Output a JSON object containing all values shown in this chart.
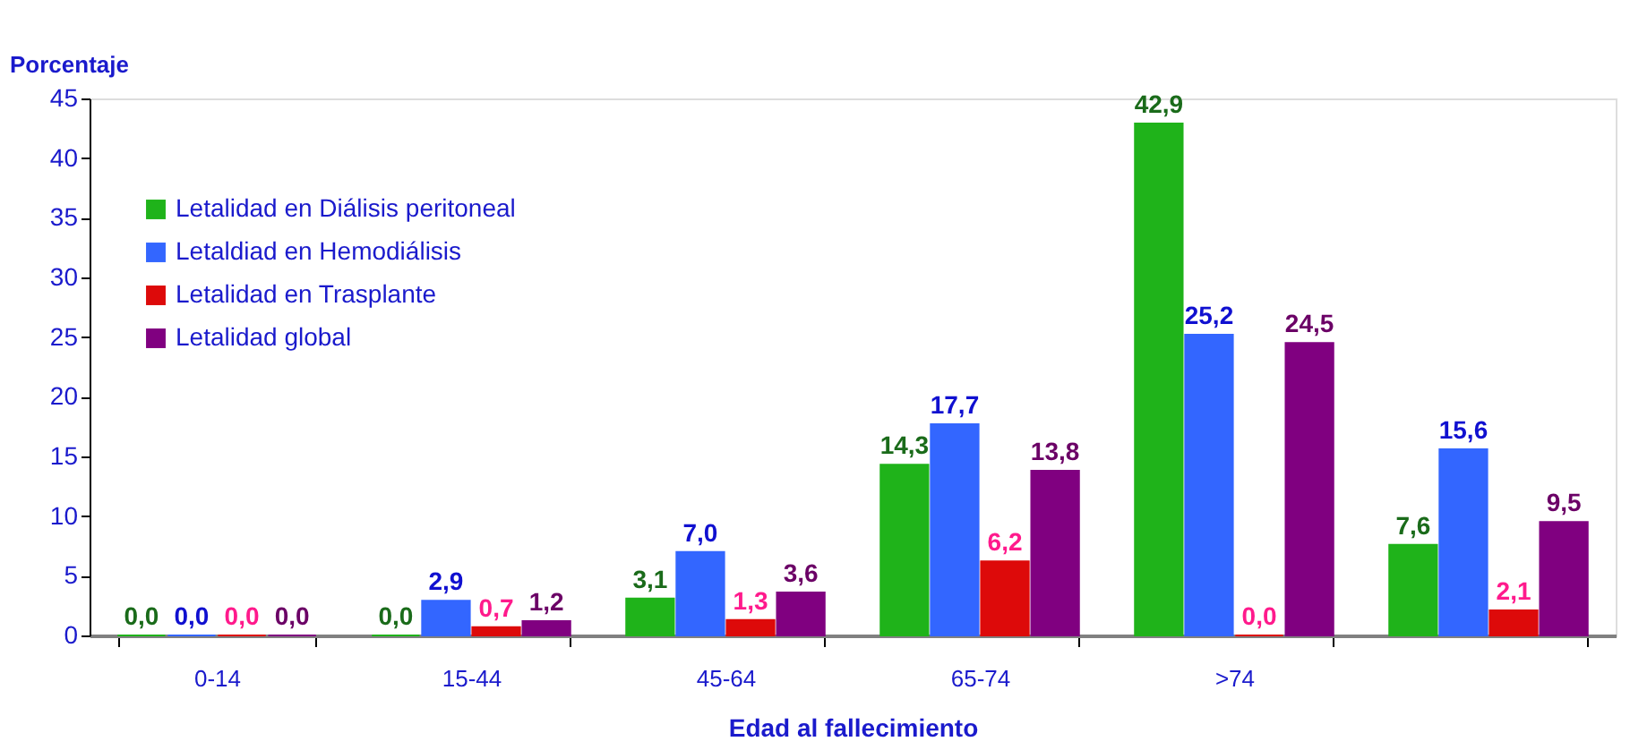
{
  "chart_data": {
    "type": "bar",
    "xlabel": "Edad al fallecimiento",
    "ylabel": "Porcentaje",
    "categories": [
      "0-14",
      "15-44",
      "45-64",
      "65-74",
      ">74",
      null
    ],
    "series": [
      {
        "name": "Letalidad en Diálisis peritoneal",
        "color": "#1fb31a",
        "values": [
          0.0,
          0.0,
          3.1,
          14.3,
          42.9,
          7.6
        ],
        "value_labels": [
          "0,0",
          "0,0",
          "3,1",
          "14,3",
          "42,9",
          "7,6"
        ]
      },
      {
        "name": "Letaldiad en Hemodiálisis",
        "color": "#3366ff",
        "values": [
          0.0,
          2.9,
          7.0,
          17.7,
          25.2,
          15.6
        ],
        "value_labels": [
          "0,0",
          "2,9",
          "7,0",
          "17,7",
          "25,2",
          "15,6"
        ]
      },
      {
        "name": "Letalidad en Trasplante",
        "color": "#dd0a0a",
        "values": [
          0.0,
          0.7,
          1.3,
          6.2,
          0.0,
          2.1
        ],
        "value_labels": [
          "0,0",
          "0,7",
          "1,3",
          "6,2",
          "0,0",
          "2,1"
        ]
      },
      {
        "name": "Letalidad global",
        "color": "#800080",
        "values": [
          0.0,
          1.2,
          3.6,
          13.8,
          24.5,
          9.5
        ],
        "value_labels": [
          "0,0",
          "1,2",
          "3,6",
          "13,8",
          "24,5",
          "9,5"
        ]
      }
    ],
    "ylim": [
      0,
      45
    ],
    "yticks": [
      0,
      5,
      10,
      15,
      20,
      25,
      30,
      35,
      40,
      45
    ],
    "grid": false,
    "legend": "top left"
  }
}
